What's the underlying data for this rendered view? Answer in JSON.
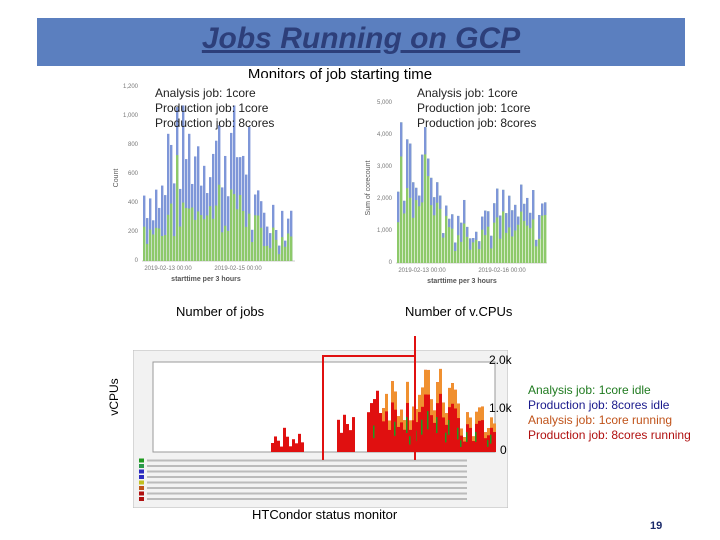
{
  "slide": {
    "title": "Jobs Running on GCP",
    "subtitle": "Monitors of job starting time",
    "page_number": "19"
  },
  "left_chart": {
    "legend": [
      "Analysis job: 1core",
      "Production job: 1core",
      "Production job: 8cores"
    ],
    "y_ticks": [
      "1,200",
      "1,000",
      "800",
      "600",
      "400",
      "200",
      "0"
    ],
    "y_label": "Count",
    "x_ticks": [
      "2019-02-13 00:00",
      "2019-02-15 00:00"
    ],
    "x_label": "starttime per 3 hours",
    "caption": "Number of jobs"
  },
  "right_chart": {
    "legend": [
      "Analysis job: 1core",
      "Production job: 1core",
      "Production job: 8cores"
    ],
    "y_ticks": [
      "5,000",
      "4,000",
      "3,000",
      "2,000",
      "1,000",
      "0"
    ],
    "y_label": "Sum of corecount",
    "x_ticks": [
      "2019-02-13 00:00",
      "2019-02-16 00:00"
    ],
    "x_label": "starttime per 3 hours",
    "caption": "Number of v.CPUs"
  },
  "htcondor": {
    "y_axis_label": "vCPUs",
    "y_marks": [
      "2.0k",
      "1.0k",
      "0"
    ],
    "legend": [
      {
        "label": "Analysis job: 1core idle",
        "color": "#1f7a1f"
      },
      {
        "label": "Production job: 8cores idle",
        "color": "#1a1a8c"
      },
      {
        "label": "Analysis job: 1core running",
        "color": "#c0531a"
      },
      {
        "label": "Production job: 8cores running",
        "color": "#b01010"
      }
    ],
    "caption": "HTCondor status monitor"
  },
  "colors": {
    "title_bar": "#5b7fbf",
    "bar_green": "#8dc96a",
    "bar_blue": "#7e96d8",
    "running_red": "#e01010",
    "running_orange": "#f09030",
    "idle_green": "#1f9a1f",
    "idle_blue": "#2a2ac0"
  }
}
